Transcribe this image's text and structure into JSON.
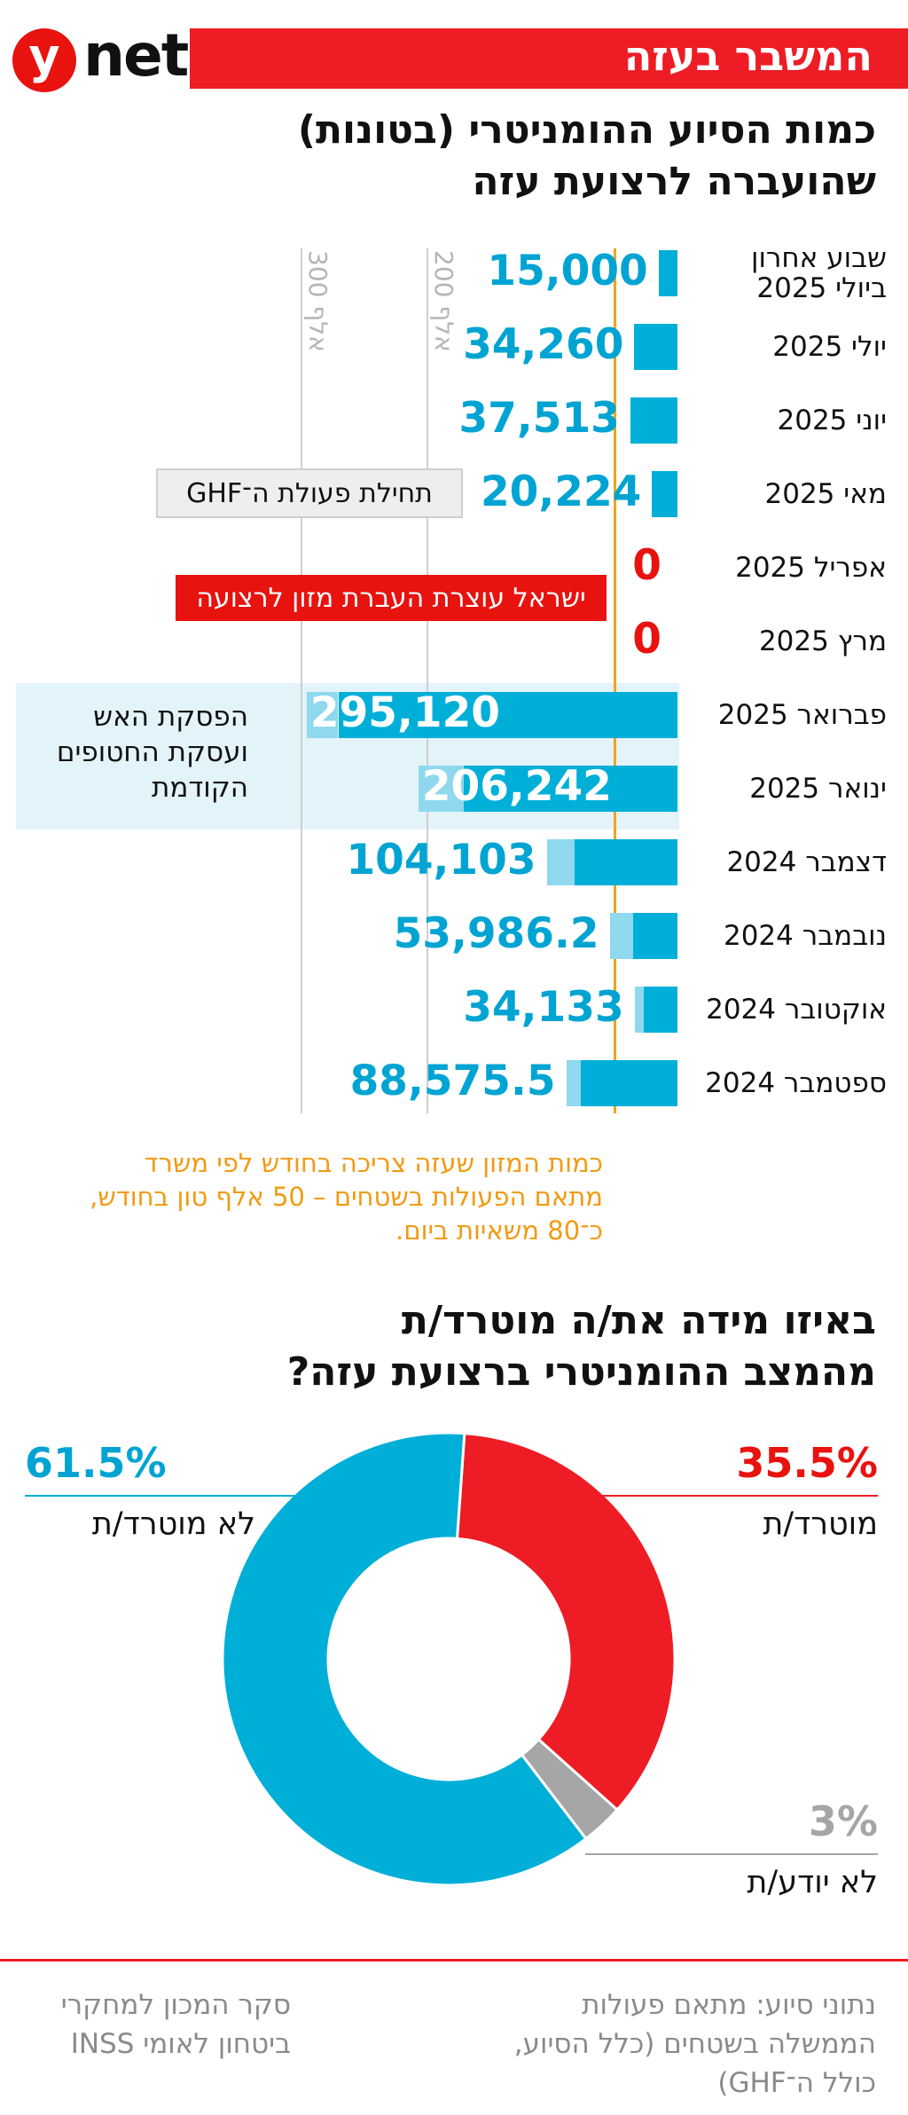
{
  "header": {
    "logo_y": "y",
    "logo_net": "net",
    "banner": "המשבר בעזה",
    "brand_red": "#ee1c25"
  },
  "bar_title_lines": [
    "כמות הסיוע ההומניטרי (בטונות)",
    "שהועברה לרצועת עזה"
  ],
  "gridlabels": [
    "300 אלף",
    "200 אלף"
  ],
  "shade_text": [
    "הפסקת האש",
    "ועסקת החטופים",
    "הקודמת"
  ],
  "callouts": {
    "ghf": "תחילת פעולת ה־GHF",
    "israel_stop": "ישראל עוצרת העברת מזון לרצועה"
  },
  "reference_note": [
    "כמות המזון שעזה צריכה בחודש לפי משרד",
    "מתאם הפעולות בשטחים – 50 אלף טון בחודש,",
    "כ־80 משאיות ביום."
  ],
  "pie_title_lines": [
    "באיזו מידה את/ה מוטרד/ת",
    "מהמצב ההומניטרי ברצועת עזה?"
  ],
  "footer": {
    "right_lines": [
      "נתוני סיוע: מתאם פעולות",
      "הממשלה בשטחים (כלל הסיוע,",
      "כולל ה־GHF)"
    ],
    "left_lines": [
      "סקר המכון למחקרי",
      "ביטחון לאומי INSS"
    ]
  },
  "chart_data": [
    {
      "type": "bar",
      "orientation": "horizontal",
      "title": "כמות הסיוע ההומניטרי (בטונות) שהועברה לרצועת עזה",
      "unit": "טון",
      "xlim": [
        0,
        300000
      ],
      "reference_value": 50000,
      "series_note": "light segment = other aid; dark segment = food (estimated split)",
      "rows": [
        {
          "label": [
            "שבוע אחרון",
            "ביולי 2025"
          ],
          "value_text": "15,000",
          "value": 15000,
          "food": 15000
        },
        {
          "label": [
            "יולי 2025"
          ],
          "value_text": "34,260",
          "value": 34260,
          "food": 34260
        },
        {
          "label": [
            "יוני 2025"
          ],
          "value_text": "37,513",
          "value": 37513,
          "food": 37513
        },
        {
          "label": [
            "מאי 2025"
          ],
          "value_text": "20,224",
          "value": 20224,
          "food": 20224
        },
        {
          "label": [
            "אפריל 2025"
          ],
          "value_text": "0",
          "value": 0,
          "food": 0
        },
        {
          "label": [
            "מרץ 2025"
          ],
          "value_text": "0",
          "value": 0,
          "food": 0
        },
        {
          "label": [
            "פברואר 2025"
          ],
          "value_text": "295,120",
          "value": 295120,
          "food": 270000
        },
        {
          "label": [
            "ינואר 2025"
          ],
          "value_text": "206,242",
          "value": 206242,
          "food": 170000
        },
        {
          "label": [
            "דצמבר 2024"
          ],
          "value_text": "104,103",
          "value": 104103,
          "food": 82000
        },
        {
          "label": [
            "נובמבר 2024"
          ],
          "value_text": "53,986.2",
          "value": 53986.2,
          "food": 35000
        },
        {
          "label": [
            "אוקטובר 2024"
          ],
          "value_text": "34,133",
          "value": 34133,
          "food": 27000
        },
        {
          "label": [
            "ספטמבר 2024"
          ],
          "value_text": "88,575.5",
          "value": 88575.5,
          "food": 77000
        }
      ],
      "colors": {
        "food": "#00afd8",
        "other": "#8fd8ee",
        "zero": "#e8120f",
        "reference": "#f4a21a"
      }
    },
    {
      "type": "pie",
      "title": "באיזו מידה את/ה מוטרד/ת מהמצב ההומניטרי ברצועת עזה?",
      "slices": [
        {
          "label": "מוטרד/ת",
          "value": 35.5,
          "value_text": "35.5%",
          "color": "#ee1c25"
        },
        {
          "label": "לא יודע/ת",
          "value": 3,
          "value_text": "3%",
          "color": "#a6a6a6"
        },
        {
          "label": "לא מוטרד/ת",
          "value": 61.5,
          "value_text": "61.5%",
          "color": "#00afd8"
        }
      ]
    }
  ]
}
